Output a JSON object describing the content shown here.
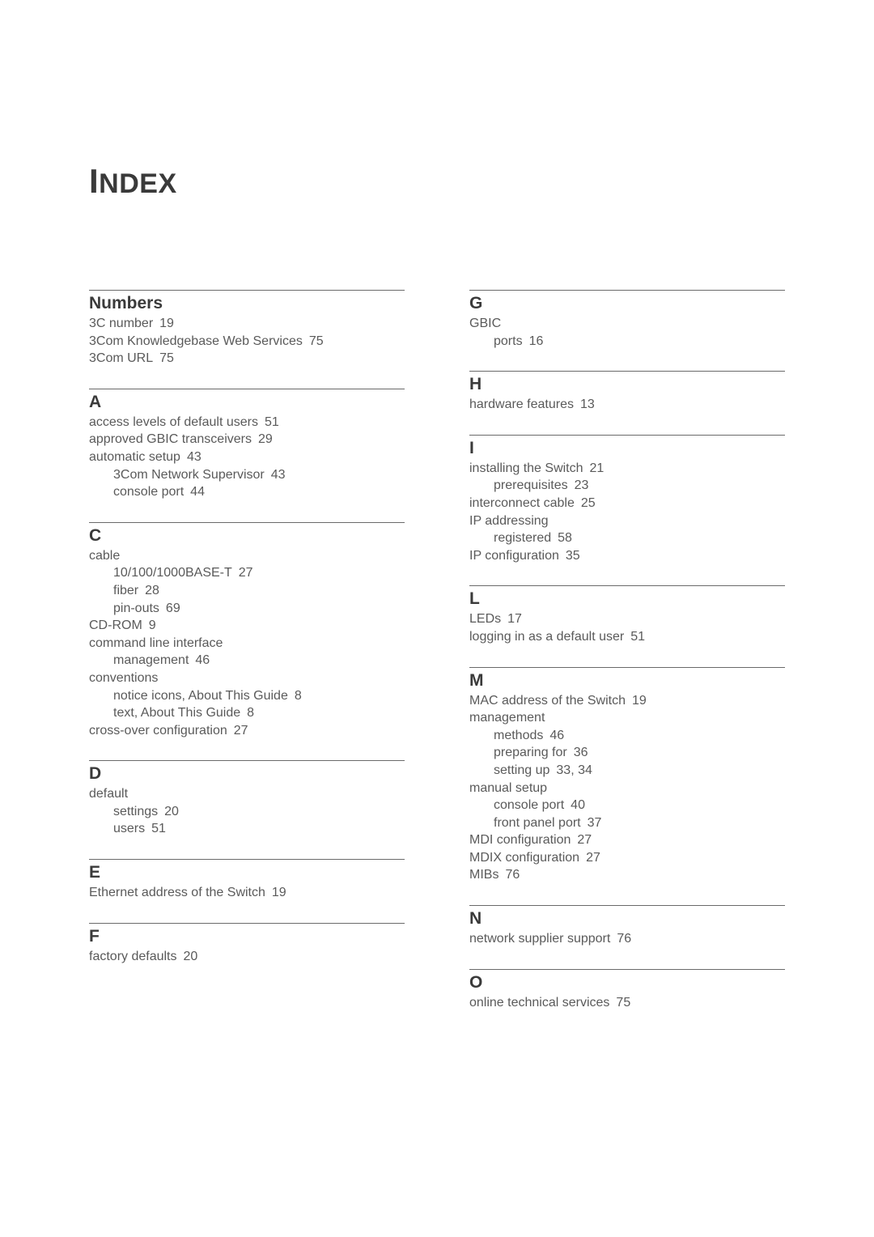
{
  "title_prefix": "I",
  "title_suffix": "NDEX",
  "left": [
    {
      "letter": "Numbers",
      "entries": [
        {
          "text": "3C number",
          "page": "19",
          "indent": 0
        },
        {
          "text": "3Com Knowledgebase Web Services",
          "page": "75",
          "indent": 0
        },
        {
          "text": "3Com URL",
          "page": "75",
          "indent": 0
        }
      ]
    },
    {
      "letter": "A",
      "entries": [
        {
          "text": "access levels of default users",
          "page": "51",
          "indent": 0
        },
        {
          "text": "approved GBIC transceivers",
          "page": "29",
          "indent": 0
        },
        {
          "text": "automatic setup",
          "page": "43",
          "indent": 0
        },
        {
          "text": "3Com Network Supervisor",
          "page": "43",
          "indent": 1
        },
        {
          "text": "console port",
          "page": "44",
          "indent": 1
        }
      ]
    },
    {
      "letter": "C",
      "entries": [
        {
          "text": "cable",
          "page": "",
          "indent": 0
        },
        {
          "text": "10/100/1000BASE-T",
          "page": "27",
          "indent": 1
        },
        {
          "text": "fiber",
          "page": "28",
          "indent": 1
        },
        {
          "text": "pin-outs",
          "page": "69",
          "indent": 1
        },
        {
          "text": "CD-ROM",
          "page": "9",
          "indent": 0
        },
        {
          "text": "command line interface",
          "page": "",
          "indent": 0
        },
        {
          "text": "management",
          "page": "46",
          "indent": 1
        },
        {
          "text": "conventions",
          "page": "",
          "indent": 0
        },
        {
          "text": "notice icons, About This Guide",
          "page": "8",
          "indent": 1
        },
        {
          "text": "text, About This Guide",
          "page": "8",
          "indent": 1
        },
        {
          "text": "cross-over configuration",
          "page": "27",
          "indent": 0
        }
      ]
    },
    {
      "letter": "D",
      "entries": [
        {
          "text": "default",
          "page": "",
          "indent": 0
        },
        {
          "text": "settings",
          "page": "20",
          "indent": 1
        },
        {
          "text": "users",
          "page": "51",
          "indent": 1
        }
      ]
    },
    {
      "letter": "E",
      "entries": [
        {
          "text": "Ethernet address of the Switch",
          "page": "19",
          "indent": 0
        }
      ]
    },
    {
      "letter": "F",
      "entries": [
        {
          "text": "factory defaults",
          "page": "20",
          "indent": 0
        }
      ]
    }
  ],
  "right": [
    {
      "letter": "G",
      "entries": [
        {
          "text": "GBIC",
          "page": "",
          "indent": 0
        },
        {
          "text": "ports",
          "page": "16",
          "indent": 1
        }
      ]
    },
    {
      "letter": "H",
      "entries": [
        {
          "text": "hardware features",
          "page": "13",
          "indent": 0
        }
      ]
    },
    {
      "letter": "I",
      "entries": [
        {
          "text": "installing the Switch",
          "page": "21",
          "indent": 0
        },
        {
          "text": "prerequisites",
          "page": "23",
          "indent": 1
        },
        {
          "text": "interconnect cable",
          "page": "25",
          "indent": 0
        },
        {
          "text": "IP addressing",
          "page": "",
          "indent": 0
        },
        {
          "text": "registered",
          "page": "58",
          "indent": 1
        },
        {
          "text": "IP configuration",
          "page": "35",
          "indent": 0
        }
      ]
    },
    {
      "letter": "L",
      "entries": [
        {
          "text": "LEDs",
          "page": "17",
          "indent": 0
        },
        {
          "text": "logging in as a default user",
          "page": "51",
          "indent": 0
        }
      ]
    },
    {
      "letter": "M",
      "entries": [
        {
          "text": "MAC address of the Switch",
          "page": "19",
          "indent": 0
        },
        {
          "text": "management",
          "page": "",
          "indent": 0
        },
        {
          "text": "methods",
          "page": "46",
          "indent": 1
        },
        {
          "text": "preparing for",
          "page": "36",
          "indent": 1
        },
        {
          "text": "setting up",
          "page": "33, 34",
          "indent": 1
        },
        {
          "text": "manual setup",
          "page": "",
          "indent": 0
        },
        {
          "text": "console port",
          "page": "40",
          "indent": 1
        },
        {
          "text": "front panel port",
          "page": "37",
          "indent": 1
        },
        {
          "text": "MDI configuration",
          "page": "27",
          "indent": 0
        },
        {
          "text": "MDIX configuration",
          "page": "27",
          "indent": 0
        },
        {
          "text": "MIBs",
          "page": "76",
          "indent": 0
        }
      ]
    },
    {
      "letter": "N",
      "entries": [
        {
          "text": "network supplier support",
          "page": "76",
          "indent": 0
        }
      ]
    },
    {
      "letter": "O",
      "entries": [
        {
          "text": "online technical services",
          "page": "75",
          "indent": 0
        }
      ]
    }
  ]
}
